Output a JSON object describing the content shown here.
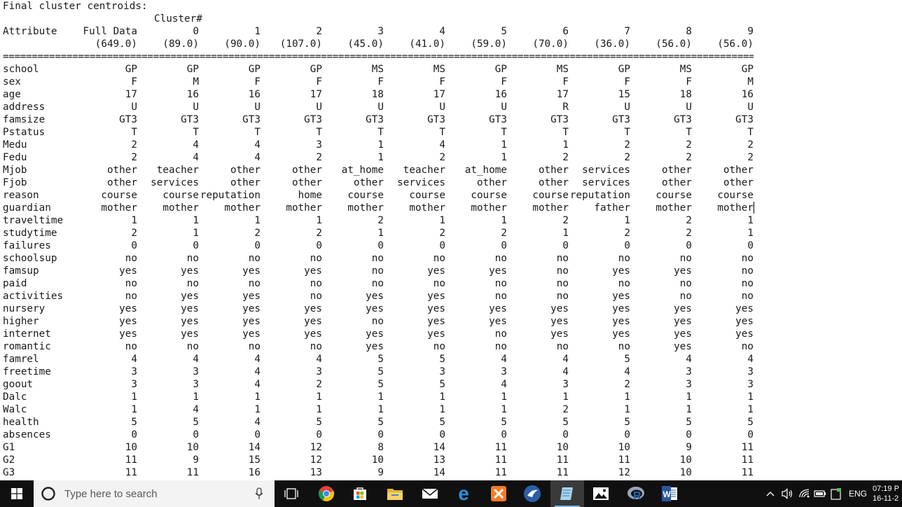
{
  "console": {
    "title": "Final cluster centroids:",
    "cluster_header": "Cluster#",
    "attribute_header": "Attribute",
    "full_data_header": "Full Data",
    "cluster_numbers": [
      "0",
      "1",
      "2",
      "3",
      "4",
      "5",
      "6",
      "7",
      "8",
      "9"
    ],
    "counts": [
      "(649.0)",
      "(89.0)",
      "(90.0)",
      "(107.0)",
      "(45.0)",
      "(41.0)",
      "(59.0)",
      "(70.0)",
      "(36.0)",
      "(56.0)",
      "(56.0)"
    ],
    "separator": "==========================================================================================================================================================",
    "rows": [
      {
        "attr": "school",
        "values": [
          "GP",
          "GP",
          "GP",
          "GP",
          "MS",
          "MS",
          "GP",
          "MS",
          "GP",
          "MS",
          "GP"
        ]
      },
      {
        "attr": "sex",
        "values": [
          "F",
          "M",
          "F",
          "F",
          "F",
          "F",
          "F",
          "F",
          "F",
          "F",
          "M"
        ]
      },
      {
        "attr": "age",
        "values": [
          "17",
          "16",
          "16",
          "17",
          "18",
          "17",
          "16",
          "17",
          "15",
          "18",
          "16"
        ]
      },
      {
        "attr": "address",
        "values": [
          "U",
          "U",
          "U",
          "U",
          "U",
          "U",
          "U",
          "R",
          "U",
          "U",
          "U"
        ]
      },
      {
        "attr": "famsize",
        "values": [
          "GT3",
          "GT3",
          "GT3",
          "GT3",
          "GT3",
          "GT3",
          "GT3",
          "GT3",
          "GT3",
          "GT3",
          "GT3"
        ]
      },
      {
        "attr": "Pstatus",
        "values": [
          "T",
          "T",
          "T",
          "T",
          "T",
          "T",
          "T",
          "T",
          "T",
          "T",
          "T"
        ]
      },
      {
        "attr": "Medu",
        "values": [
          "2",
          "4",
          "4",
          "3",
          "1",
          "4",
          "1",
          "1",
          "2",
          "2",
          "2"
        ]
      },
      {
        "attr": "Fedu",
        "values": [
          "2",
          "4",
          "4",
          "2",
          "1",
          "2",
          "1",
          "2",
          "2",
          "2",
          "2"
        ]
      },
      {
        "attr": "Mjob",
        "values": [
          "other",
          "teacher",
          "other",
          "other",
          "at_home",
          "teacher",
          "at_home",
          "other",
          "services",
          "other",
          "other"
        ]
      },
      {
        "attr": "Fjob",
        "values": [
          "other",
          "services",
          "other",
          "other",
          "other",
          "services",
          "other",
          "other",
          "services",
          "other",
          "other"
        ]
      },
      {
        "attr": "reason",
        "values": [
          "course",
          "course",
          "reputation",
          "home",
          "course",
          "course",
          "course",
          "course",
          "reputation",
          "course",
          "course"
        ]
      },
      {
        "attr": "guardian",
        "values": [
          "mother",
          "mother",
          "mother",
          "mother",
          "mother",
          "mother",
          "mother",
          "mother",
          "father",
          "mother",
          "mother"
        ]
      },
      {
        "attr": "traveltime",
        "values": [
          "1",
          "1",
          "1",
          "1",
          "2",
          "1",
          "1",
          "2",
          "1",
          "2",
          "1"
        ]
      },
      {
        "attr": "studytime",
        "values": [
          "2",
          "1",
          "2",
          "2",
          "1",
          "2",
          "2",
          "1",
          "2",
          "2",
          "1"
        ]
      },
      {
        "attr": "failures",
        "values": [
          "0",
          "0",
          "0",
          "0",
          "0",
          "0",
          "0",
          "0",
          "0",
          "0",
          "0"
        ]
      },
      {
        "attr": "schoolsup",
        "values": [
          "no",
          "no",
          "no",
          "no",
          "no",
          "no",
          "no",
          "no",
          "no",
          "no",
          "no"
        ]
      },
      {
        "attr": "famsup",
        "values": [
          "yes",
          "yes",
          "yes",
          "yes",
          "no",
          "yes",
          "yes",
          "no",
          "yes",
          "yes",
          "no"
        ]
      },
      {
        "attr": "paid",
        "values": [
          "no",
          "no",
          "no",
          "no",
          "no",
          "no",
          "no",
          "no",
          "no",
          "no",
          "no"
        ]
      },
      {
        "attr": "activities",
        "values": [
          "no",
          "yes",
          "yes",
          "no",
          "yes",
          "yes",
          "no",
          "no",
          "yes",
          "no",
          "no"
        ]
      },
      {
        "attr": "nursery",
        "values": [
          "yes",
          "yes",
          "yes",
          "yes",
          "yes",
          "yes",
          "yes",
          "yes",
          "yes",
          "yes",
          "yes"
        ]
      },
      {
        "attr": "higher",
        "values": [
          "yes",
          "yes",
          "yes",
          "yes",
          "no",
          "yes",
          "yes",
          "yes",
          "yes",
          "yes",
          "yes"
        ]
      },
      {
        "attr": "internet",
        "values": [
          "yes",
          "yes",
          "yes",
          "yes",
          "yes",
          "yes",
          "no",
          "yes",
          "yes",
          "yes",
          "yes"
        ]
      },
      {
        "attr": "romantic",
        "values": [
          "no",
          "no",
          "no",
          "no",
          "yes",
          "no",
          "no",
          "no",
          "no",
          "yes",
          "no"
        ]
      },
      {
        "attr": "famrel",
        "values": [
          "4",
          "4",
          "4",
          "4",
          "5",
          "5",
          "4",
          "4",
          "5",
          "4",
          "4"
        ]
      },
      {
        "attr": "freetime",
        "values": [
          "3",
          "3",
          "4",
          "3",
          "5",
          "3",
          "3",
          "4",
          "4",
          "3",
          "3"
        ]
      },
      {
        "attr": "goout",
        "values": [
          "3",
          "3",
          "4",
          "2",
          "5",
          "5",
          "4",
          "3",
          "2",
          "3",
          "3"
        ]
      },
      {
        "attr": "Dalc",
        "values": [
          "1",
          "1",
          "1",
          "1",
          "1",
          "1",
          "1",
          "1",
          "1",
          "1",
          "1"
        ]
      },
      {
        "attr": "Walc",
        "values": [
          "1",
          "4",
          "1",
          "1",
          "1",
          "1",
          "1",
          "2",
          "1",
          "1",
          "1"
        ]
      },
      {
        "attr": "health",
        "values": [
          "5",
          "5",
          "4",
          "5",
          "5",
          "5",
          "5",
          "5",
          "5",
          "5",
          "5"
        ]
      },
      {
        "attr": "absences",
        "values": [
          "0",
          "0",
          "0",
          "0",
          "0",
          "0",
          "0",
          "0",
          "0",
          "0",
          "0"
        ]
      },
      {
        "attr": "G1",
        "values": [
          "10",
          "10",
          "14",
          "12",
          "8",
          "14",
          "11",
          "10",
          "10",
          "9",
          "11"
        ]
      },
      {
        "attr": "G2",
        "values": [
          "11",
          "9",
          "15",
          "12",
          "10",
          "13",
          "11",
          "11",
          "11",
          "10",
          "11"
        ]
      },
      {
        "attr": "G3",
        "values": [
          "11",
          "11",
          "16",
          "13",
          "9",
          "14",
          "11",
          "11",
          "12",
          "10",
          "11"
        ]
      }
    ]
  },
  "taskbar": {
    "search_placeholder": "Type here to search",
    "language": "ENG",
    "time": "07:19 P",
    "date": "16-11-2"
  },
  "colors": {
    "console_text": "#1a1a1a",
    "taskbar_bg": "#101010",
    "search_bg": "#f3f3f3",
    "accent": "#76b9ed"
  }
}
